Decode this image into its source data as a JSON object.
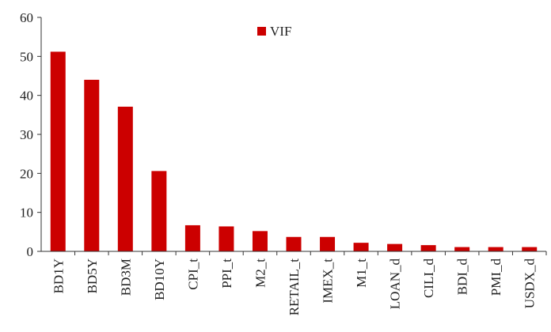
{
  "chart_data": {
    "type": "bar",
    "categories": [
      "BD1Y",
      "BD5Y",
      "BD3M",
      "BD10Y",
      "CPI_t",
      "PPI_t",
      "M2_t",
      "RETAIL_t",
      "IMEX_t",
      "M1_t",
      "LOAN_d",
      "CILI_d",
      "BDI_d",
      "PMI_d",
      "USDX_d"
    ],
    "series": [
      {
        "name": "VIF",
        "values": [
          51.2,
          44.0,
          37.1,
          20.6,
          6.7,
          6.4,
          5.2,
          3.7,
          3.7,
          2.2,
          1.9,
          1.6,
          1.1,
          1.1,
          1.1
        ]
      }
    ],
    "ylim": [
      0,
      60
    ],
    "yticks": [
      0,
      10,
      20,
      30,
      40,
      50,
      60
    ],
    "title": "",
    "xlabel": "",
    "ylabel": "",
    "legend": "top-center",
    "grid": false,
    "bar_color": "#cc0000"
  }
}
